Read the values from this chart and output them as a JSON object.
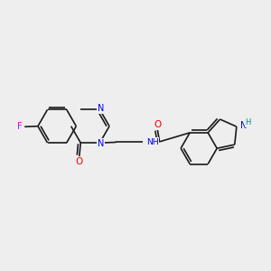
{
  "background_color": "#eeeeee",
  "bond_color": "#1a1a1a",
  "atom_colors": {
    "N": "#0000ee",
    "O": "#ee0000",
    "F": "#ee00ee",
    "H": "#008888",
    "C": "#1a1a1a"
  },
  "font_size": 7.0,
  "figsize": [
    3.0,
    3.0
  ],
  "dpi": 100
}
